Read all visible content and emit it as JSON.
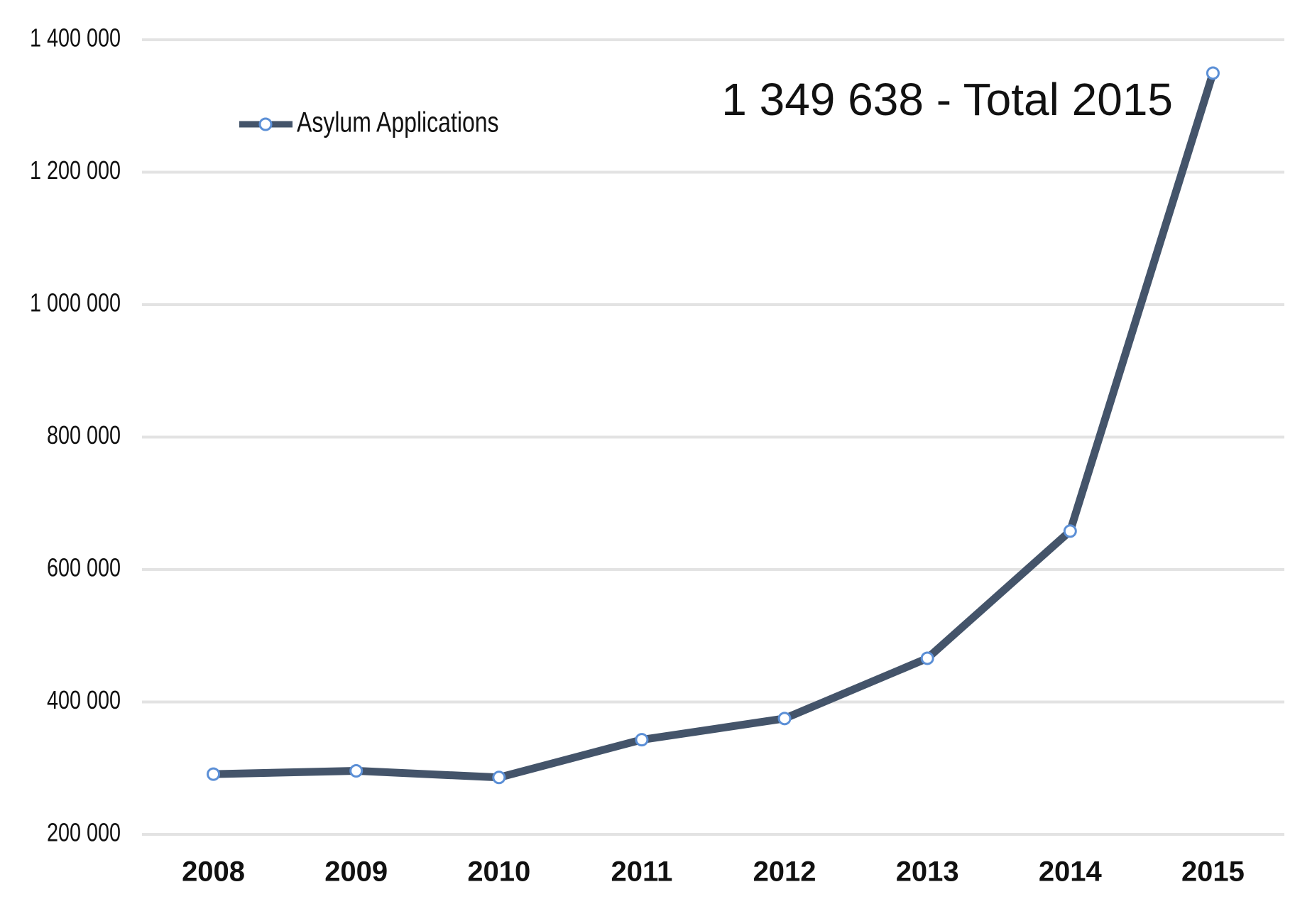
{
  "chart_data": {
    "type": "line",
    "categories": [
      "2008",
      "2009",
      "2010",
      "2011",
      "2012",
      "2013",
      "2014",
      "2015"
    ],
    "series": [
      {
        "name": "Asylum Applications",
        "color": "#44546a",
        "marker_color": "#5b8fd6",
        "values": [
          291000,
          296000,
          286000,
          343000,
          375000,
          466000,
          658000,
          1349638
        ]
      }
    ],
    "annotation": "1 349 638 - Total 2015",
    "annotation_color": "#c55a11",
    "ylim": [
      200000,
      1400000
    ],
    "yticks": [
      {
        "value": 200000,
        "label": "200 000"
      },
      {
        "value": 400000,
        "label": "400 000"
      },
      {
        "value": 600000,
        "label": "600 000"
      },
      {
        "value": 800000,
        "label": "800 000"
      },
      {
        "value": 1000000,
        "label": "1 000 000"
      },
      {
        "value": 1200000,
        "label": "1 200 000"
      },
      {
        "value": 1400000,
        "label": "1 400 000"
      }
    ],
    "grid": true
  }
}
